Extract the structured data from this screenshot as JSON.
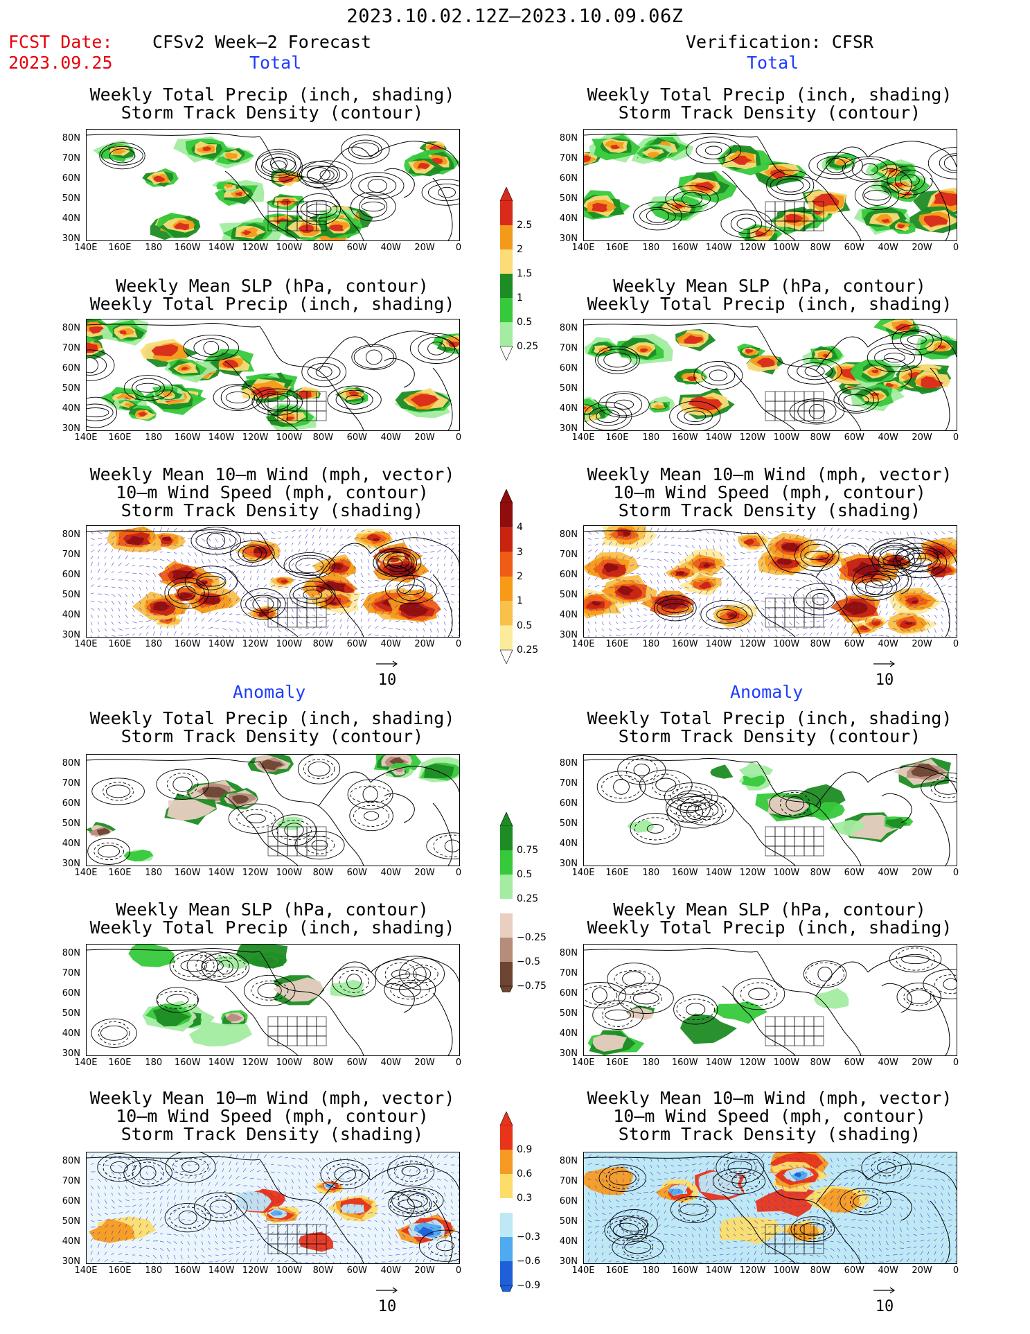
{
  "header": {
    "date_range": "2023.10.02.12Z—2023.10.09.06Z",
    "fcst_label": "FCST Date:",
    "fcst_date": "2023.09.25",
    "left_title": "CFSv2 Week—2 Forecast",
    "right_title": "Verification: CFSR"
  },
  "sections": {
    "total": "Total",
    "anomaly": "Anomaly"
  },
  "panel_titles": {
    "precip_storm": [
      "Weekly Total Precip (inch, shading)",
      "Storm Track Density (contour)"
    ],
    "slp_precip": [
      "Weekly Mean SLP (hPa, contour)",
      "Weekly Total Precip (inch, shading)"
    ],
    "wind_storm": [
      "Weekly Mean 10—m Wind (mph, vector)",
      "10—m Wind Speed (mph, contour)",
      "Storm Track Density (shading)"
    ]
  },
  "axes": {
    "lat_labels": [
      "80N",
      "70N",
      "60N",
      "50N",
      "40N",
      "30N"
    ],
    "lon_labels": [
      "140E",
      "160E",
      "180",
      "160W",
      "140W",
      "120W",
      "100W",
      "80W",
      "60W",
      "40W",
      "20W",
      "0"
    ]
  },
  "vector_ref": "10",
  "colorbars": {
    "precip_total": {
      "labels": [
        "2.5",
        "2",
        "1.5",
        "1",
        "0.5",
        "0.25"
      ],
      "colors": [
        "#d92a1c",
        "#f39a1a",
        "#fbdc78",
        "#1e8c24",
        "#36c93b",
        "#a3eca1"
      ]
    },
    "storm_total": {
      "labels": [
        "4",
        "3",
        "2",
        "1",
        "0.5",
        "0.25"
      ],
      "colors": [
        "#8f0d0d",
        "#c8240f",
        "#ef5c16",
        "#f79a18",
        "#f9c04a",
        "#fdeb9c"
      ]
    },
    "precip_anom": {
      "labels": [
        "0.75",
        "0.5",
        "0.25",
        "−0.25",
        "−0.5",
        "−0.75"
      ],
      "colors": [
        "#1e8c24",
        "#36c93b",
        "#a3eca1",
        "#e9cfc2",
        "#b68c7b",
        "#6e4433"
      ]
    },
    "storm_anom": {
      "labels": [
        "0.9",
        "0.6",
        "0.3",
        "−0.3",
        "−0.6",
        "−0.9"
      ],
      "colors": [
        "#e8351a",
        "#f59a22",
        "#fcdd6a",
        "#bfe8f5",
        "#4faaf0",
        "#1f5fd9"
      ]
    }
  },
  "map_colors": {
    "land_line": "#000000",
    "wind_vector": "#3b3bdb"
  }
}
